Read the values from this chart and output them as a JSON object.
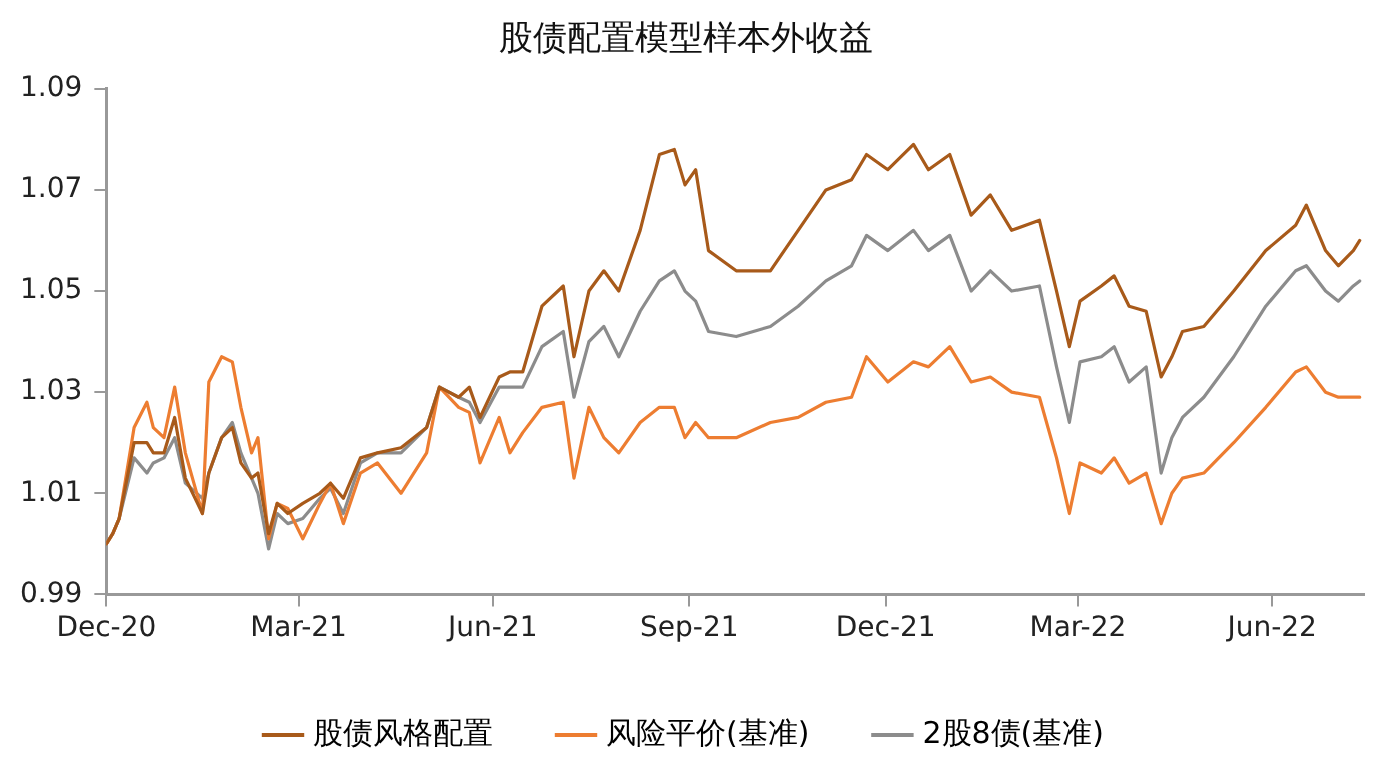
{
  "chart_data": {
    "type": "line",
    "title": "股债配置模型样本外收益",
    "x": [
      "2020-12-31",
      "2021-01-03",
      "2021-01-06",
      "2021-01-13",
      "2021-01-19",
      "2021-01-22",
      "2021-01-27",
      "2021-02-01",
      "2021-02-06",
      "2021-02-14",
      "2021-02-17",
      "2021-02-23",
      "2021-02-28",
      "2021-03-04",
      "2021-03-09",
      "2021-03-12",
      "2021-03-17",
      "2021-03-21",
      "2021-03-26",
      "2021-04-02",
      "2021-04-10",
      "2021-04-15",
      "2021-04-21",
      "2021-04-29",
      "2021-05-07",
      "2021-05-18",
      "2021-05-30",
      "2021-06-05",
      "2021-06-14",
      "2021-06-19",
      "2021-06-24",
      "2021-07-03",
      "2021-07-08",
      "2021-07-14",
      "2021-07-23",
      "2021-08-02",
      "2021-08-07",
      "2021-08-14",
      "2021-08-21",
      "2021-08-28",
      "2021-09-07",
      "2021-09-16",
      "2021-09-23",
      "2021-09-28",
      "2021-10-03",
      "2021-10-09",
      "2021-10-22",
      "2021-11-07",
      "2021-11-20",
      "2021-12-03",
      "2021-12-15",
      "2021-12-22",
      "2022-01-01",
      "2022-01-13",
      "2022-01-20",
      "2022-01-30",
      "2022-02-09",
      "2022-02-18",
      "2022-02-28",
      "2022-03-13",
      "2022-03-21",
      "2022-03-27",
      "2022-04-01",
      "2022-04-11",
      "2022-04-17",
      "2022-04-24",
      "2022-05-02",
      "2022-05-09",
      "2022-05-14",
      "2022-05-19",
      "2022-05-29",
      "2022-06-12",
      "2022-06-27",
      "2022-07-11",
      "2022-07-16",
      "2022-07-25",
      "2022-07-31",
      "2022-08-07",
      "2022-08-10"
    ],
    "series": [
      {
        "name": "股债风格配置",
        "color": "#a85a1a",
        "values": [
          1.0,
          1.002,
          1.005,
          1.02,
          1.02,
          1.018,
          1.018,
          1.025,
          1.013,
          1.006,
          1.014,
          1.021,
          1.023,
          1.016,
          1.013,
          1.014,
          1.002,
          1.008,
          1.006,
          1.008,
          1.01,
          1.012,
          1.009,
          1.017,
          1.018,
          1.019,
          1.023,
          1.031,
          1.029,
          1.031,
          1.025,
          1.033,
          1.034,
          1.034,
          1.047,
          1.051,
          1.037,
          1.05,
          1.054,
          1.05,
          1.062,
          1.077,
          1.078,
          1.071,
          1.074,
          1.058,
          1.054,
          1.054,
          1.062,
          1.07,
          1.072,
          1.077,
          1.074,
          1.079,
          1.074,
          1.077,
          1.065,
          1.069,
          1.062,
          1.064,
          1.05,
          1.039,
          1.048,
          1.051,
          1.053,
          1.047,
          1.046,
          1.033,
          1.037,
          1.042,
          1.043,
          1.05,
          1.058,
          1.063,
          1.067,
          1.058,
          1.055,
          1.058,
          1.06
        ]
      },
      {
        "name": "风险平价(基准)",
        "color": "#ed7d31",
        "values": [
          1.0,
          1.002,
          1.005,
          1.023,
          1.028,
          1.023,
          1.021,
          1.031,
          1.018,
          1.006,
          1.032,
          1.037,
          1.036,
          1.027,
          1.018,
          1.021,
          1.001,
          1.008,
          1.007,
          1.001,
          1.008,
          1.012,
          1.004,
          1.014,
          1.016,
          1.01,
          1.018,
          1.031,
          1.027,
          1.026,
          1.016,
          1.025,
          1.018,
          1.022,
          1.027,
          1.028,
          1.013,
          1.027,
          1.021,
          1.018,
          1.024,
          1.027,
          1.027,
          1.021,
          1.024,
          1.021,
          1.021,
          1.024,
          1.025,
          1.028,
          1.029,
          1.037,
          1.032,
          1.036,
          1.035,
          1.039,
          1.032,
          1.033,
          1.03,
          1.029,
          1.017,
          1.006,
          1.016,
          1.014,
          1.017,
          1.012,
          1.014,
          1.004,
          1.01,
          1.013,
          1.014,
          1.02,
          1.027,
          1.034,
          1.035,
          1.03,
          1.029,
          1.029,
          1.029
        ]
      },
      {
        "name": "2股8债(基准)",
        "color": "#8c8c8c",
        "values": [
          1.0,
          1.002,
          1.005,
          1.017,
          1.014,
          1.016,
          1.017,
          1.021,
          1.012,
          1.009,
          1.014,
          1.021,
          1.024,
          1.018,
          1.013,
          1.01,
          0.999,
          1.006,
          1.004,
          1.005,
          1.009,
          1.011,
          1.006,
          1.016,
          1.018,
          1.018,
          1.023,
          1.031,
          1.029,
          1.028,
          1.024,
          1.031,
          1.031,
          1.031,
          1.039,
          1.042,
          1.029,
          1.04,
          1.043,
          1.037,
          1.046,
          1.052,
          1.054,
          1.05,
          1.048,
          1.042,
          1.041,
          1.043,
          1.047,
          1.052,
          1.055,
          1.061,
          1.058,
          1.062,
          1.058,
          1.061,
          1.05,
          1.054,
          1.05,
          1.051,
          1.035,
          1.024,
          1.036,
          1.037,
          1.039,
          1.032,
          1.035,
          1.014,
          1.021,
          1.025,
          1.029,
          1.037,
          1.047,
          1.054,
          1.055,
          1.05,
          1.048,
          1.051,
          1.052
        ]
      }
    ],
    "xlim": [
      "2020-12-31",
      "2022-08-12"
    ],
    "xticks": [
      {
        "value": "2020-12-31",
        "label": "Dec-20"
      },
      {
        "value": "2021-03-31",
        "label": "Mar-21"
      },
      {
        "value": "2021-06-30",
        "label": "Jun-21"
      },
      {
        "value": "2021-09-30",
        "label": "Sep-21"
      },
      {
        "value": "2021-12-31",
        "label": "Dec-21"
      },
      {
        "value": "2022-03-31",
        "label": "Mar-22"
      },
      {
        "value": "2022-06-30",
        "label": "Jun-22"
      }
    ],
    "ylim": [
      0.99,
      1.09
    ],
    "yticks": [
      0.99,
      1.01,
      1.03,
      1.05,
      1.07,
      1.09
    ],
    "grid": false,
    "legend": "bottom",
    "marker": "none",
    "line_style": "solid"
  }
}
